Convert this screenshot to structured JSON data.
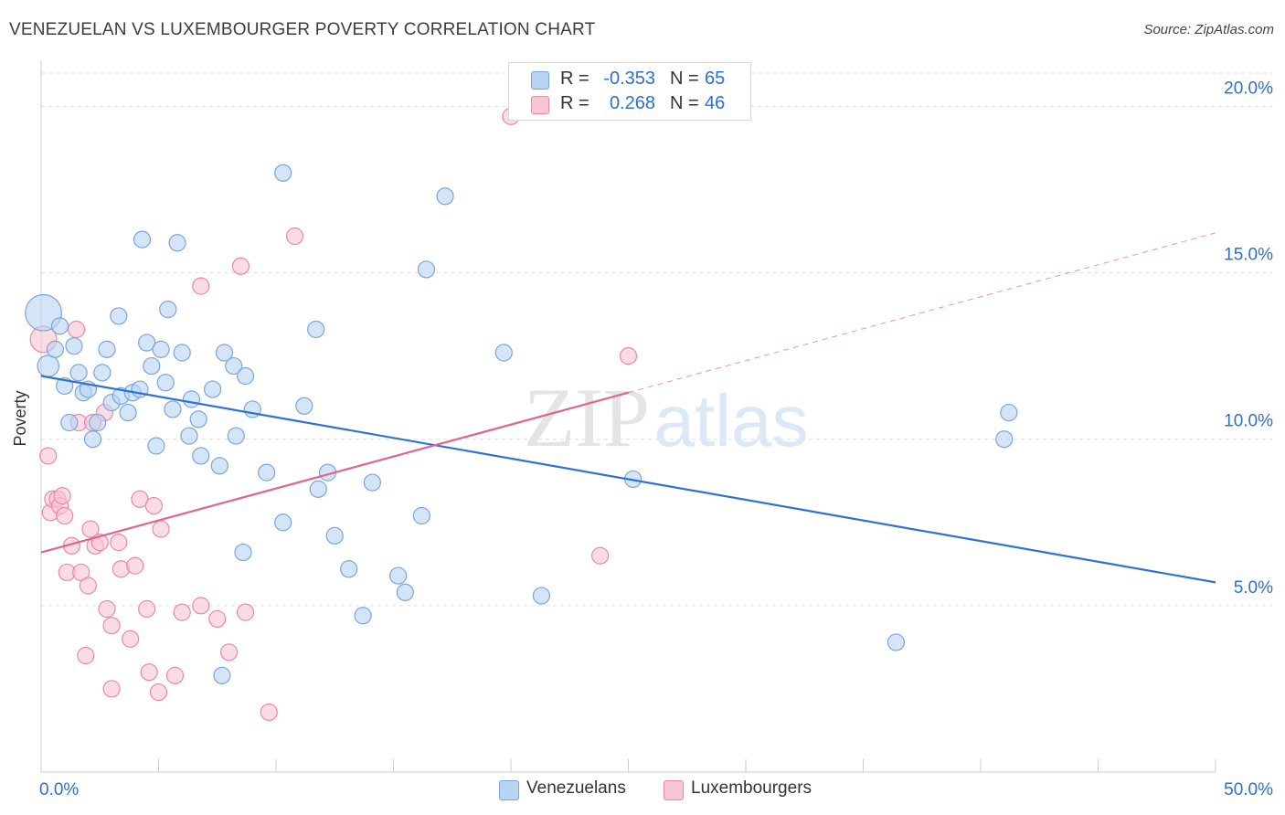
{
  "header": {
    "title": "VENEZUELAN VS LUXEMBOURGER POVERTY CORRELATION CHART",
    "source": "Source: ZipAtlas.com"
  },
  "legend_top": [
    {
      "r_label": "R =",
      "r_value": "-0.353",
      "n_label": "N =",
      "n_value": "65"
    },
    {
      "r_label": "R =",
      "r_value": "0.268",
      "n_label": "N =",
      "n_value": "46"
    }
  ],
  "legend_bottom": [
    {
      "label": "Venezuelans"
    },
    {
      "label": "Luxembourgers"
    }
  ],
  "watermark": {
    "part1": "ZIP",
    "part2": "atlas"
  },
  "chart_data": {
    "type": "scatter",
    "ylabel": "Poverty",
    "xlim": [
      0,
      50
    ],
    "ylim": [
      0,
      21
    ],
    "x_tick_labels": [
      "0.0%",
      "50.0%"
    ],
    "y_ticks": [
      5,
      10,
      15,
      20
    ],
    "y_tick_labels": [
      "5.0%",
      "10.0%",
      "15.0%",
      "20.0%"
    ],
    "grid": "horizontal dashed",
    "colors": {
      "venezuelans_fill": "#b9d3f3",
      "venezuelans_stroke": "#7ba5dc",
      "venezuelans_line": "#2e72d2",
      "luxembourgers_fill": "#f8c5d4",
      "luxembourgers_stroke": "#e98aa7",
      "luxembourgers_line": "#e0648d",
      "tick_label": "#2f6fce",
      "grid": "#dddddd"
    },
    "series": [
      {
        "name": "Venezuelans",
        "r": -0.353,
        "n": 65,
        "trend": {
          "x0": 0,
          "y0": 11.9,
          "x1": 50,
          "y1": 5.7,
          "solid_until": 50
        },
        "points": [
          {
            "x": 0.1,
            "y": 13.8,
            "s": 2.2
          },
          {
            "x": 0.3,
            "y": 12.2,
            "s": 1.3
          },
          {
            "x": 0.6,
            "y": 12.7,
            "s": 1
          },
          {
            "x": 0.8,
            "y": 13.4,
            "s": 1
          },
          {
            "x": 1.0,
            "y": 11.6,
            "s": 1
          },
          {
            "x": 1.2,
            "y": 10.5,
            "s": 1
          },
          {
            "x": 1.4,
            "y": 12.8,
            "s": 1
          },
          {
            "x": 1.6,
            "y": 12.0,
            "s": 1
          },
          {
            "x": 1.8,
            "y": 11.4,
            "s": 1
          },
          {
            "x": 2.0,
            "y": 11.5,
            "s": 1
          },
          {
            "x": 2.2,
            "y": 10.0,
            "s": 1
          },
          {
            "x": 2.4,
            "y": 10.5,
            "s": 1
          },
          {
            "x": 2.6,
            "y": 12.0,
            "s": 1
          },
          {
            "x": 2.8,
            "y": 12.7,
            "s": 1
          },
          {
            "x": 3.0,
            "y": 11.1,
            "s": 1
          },
          {
            "x": 3.3,
            "y": 13.7,
            "s": 1
          },
          {
            "x": 3.4,
            "y": 11.3,
            "s": 1
          },
          {
            "x": 3.7,
            "y": 10.8,
            "s": 1
          },
          {
            "x": 3.9,
            "y": 11.4,
            "s": 1
          },
          {
            "x": 4.2,
            "y": 11.5,
            "s": 1
          },
          {
            "x": 4.3,
            "y": 16.0,
            "s": 1
          },
          {
            "x": 4.5,
            "y": 12.9,
            "s": 1
          },
          {
            "x": 4.7,
            "y": 12.2,
            "s": 1
          },
          {
            "x": 4.9,
            "y": 9.8,
            "s": 1
          },
          {
            "x": 5.1,
            "y": 12.7,
            "s": 1
          },
          {
            "x": 5.3,
            "y": 11.7,
            "s": 1
          },
          {
            "x": 5.4,
            "y": 13.9,
            "s": 1
          },
          {
            "x": 5.6,
            "y": 10.9,
            "s": 1
          },
          {
            "x": 5.8,
            "y": 15.9,
            "s": 1
          },
          {
            "x": 6.0,
            "y": 12.6,
            "s": 1
          },
          {
            "x": 6.3,
            "y": 10.1,
            "s": 1
          },
          {
            "x": 6.4,
            "y": 11.2,
            "s": 1
          },
          {
            "x": 6.7,
            "y": 10.6,
            "s": 1
          },
          {
            "x": 6.8,
            "y": 9.5,
            "s": 1
          },
          {
            "x": 7.3,
            "y": 11.5,
            "s": 1
          },
          {
            "x": 7.6,
            "y": 9.2,
            "s": 1
          },
          {
            "x": 7.8,
            "y": 12.6,
            "s": 1
          },
          {
            "x": 8.2,
            "y": 12.2,
            "s": 1
          },
          {
            "x": 8.3,
            "y": 10.1,
            "s": 1
          },
          {
            "x": 8.7,
            "y": 11.9,
            "s": 1
          },
          {
            "x": 9.0,
            "y": 10.9,
            "s": 1
          },
          {
            "x": 8.6,
            "y": 6.6,
            "s": 1
          },
          {
            "x": 7.7,
            "y": 2.9,
            "s": 1
          },
          {
            "x": 9.6,
            "y": 9.0,
            "s": 1
          },
          {
            "x": 10.3,
            "y": 18.0,
            "s": 1
          },
          {
            "x": 10.3,
            "y": 7.5,
            "s": 1
          },
          {
            "x": 11.2,
            "y": 11.0,
            "s": 1
          },
          {
            "x": 11.7,
            "y": 13.3,
            "s": 1
          },
          {
            "x": 11.8,
            "y": 8.5,
            "s": 1
          },
          {
            "x": 12.2,
            "y": 9.0,
            "s": 1
          },
          {
            "x": 12.5,
            "y": 7.1,
            "s": 1
          },
          {
            "x": 13.1,
            "y": 6.1,
            "s": 1
          },
          {
            "x": 13.7,
            "y": 4.7,
            "s": 1
          },
          {
            "x": 14.1,
            "y": 8.7,
            "s": 1
          },
          {
            "x": 15.5,
            "y": 5.4,
            "s": 1
          },
          {
            "x": 15.2,
            "y": 5.9,
            "s": 1
          },
          {
            "x": 16.2,
            "y": 7.7,
            "s": 1
          },
          {
            "x": 16.4,
            "y": 15.1,
            "s": 1
          },
          {
            "x": 17.2,
            "y": 17.3,
            "s": 1
          },
          {
            "x": 19.7,
            "y": 12.6,
            "s": 1
          },
          {
            "x": 21.3,
            "y": 5.3,
            "s": 1
          },
          {
            "x": 25.2,
            "y": 8.8,
            "s": 1
          },
          {
            "x": 36.4,
            "y": 3.9,
            "s": 1
          },
          {
            "x": 41.0,
            "y": 10.0,
            "s": 1
          },
          {
            "x": 41.2,
            "y": 10.8,
            "s": 1
          }
        ]
      },
      {
        "name": "Luxembourgers",
        "r": 0.268,
        "n": 46,
        "trend": {
          "x0": 0,
          "y0": 6.6,
          "x1": 50,
          "y1": 16.2,
          "solid_until": 25
        },
        "points": [
          {
            "x": 0.1,
            "y": 13.0,
            "s": 1.6
          },
          {
            "x": 0.3,
            "y": 9.5,
            "s": 1
          },
          {
            "x": 0.4,
            "y": 7.8,
            "s": 1
          },
          {
            "x": 0.5,
            "y": 8.2,
            "s": 1
          },
          {
            "x": 0.7,
            "y": 8.2,
            "s": 1
          },
          {
            "x": 0.8,
            "y": 8.0,
            "s": 1
          },
          {
            "x": 0.9,
            "y": 8.3,
            "s": 1
          },
          {
            "x": 1.0,
            "y": 7.7,
            "s": 1
          },
          {
            "x": 1.1,
            "y": 6.0,
            "s": 1
          },
          {
            "x": 1.3,
            "y": 6.8,
            "s": 1
          },
          {
            "x": 1.5,
            "y": 13.3,
            "s": 1
          },
          {
            "x": 1.6,
            "y": 10.5,
            "s": 1
          },
          {
            "x": 1.7,
            "y": 6.0,
            "s": 1
          },
          {
            "x": 1.9,
            "y": 3.5,
            "s": 1
          },
          {
            "x": 2.0,
            "y": 5.6,
            "s": 1
          },
          {
            "x": 2.1,
            "y": 7.3,
            "s": 1
          },
          {
            "x": 2.2,
            "y": 10.5,
            "s": 1
          },
          {
            "x": 2.3,
            "y": 6.8,
            "s": 1
          },
          {
            "x": 2.5,
            "y": 6.9,
            "s": 1
          },
          {
            "x": 2.7,
            "y": 10.8,
            "s": 1
          },
          {
            "x": 2.8,
            "y": 4.9,
            "s": 1
          },
          {
            "x": 3.0,
            "y": 4.4,
            "s": 1
          },
          {
            "x": 3.0,
            "y": 2.5,
            "s": 1
          },
          {
            "x": 3.3,
            "y": 6.9,
            "s": 1
          },
          {
            "x": 3.4,
            "y": 6.1,
            "s": 1
          },
          {
            "x": 3.8,
            "y": 4.0,
            "s": 1
          },
          {
            "x": 4.0,
            "y": 6.2,
            "s": 1
          },
          {
            "x": 4.2,
            "y": 8.2,
            "s": 1
          },
          {
            "x": 4.5,
            "y": 4.9,
            "s": 1
          },
          {
            "x": 4.6,
            "y": 3.0,
            "s": 1
          },
          {
            "x": 4.8,
            "y": 8.0,
            "s": 1
          },
          {
            "x": 5.0,
            "y": 2.4,
            "s": 1
          },
          {
            "x": 5.1,
            "y": 7.3,
            "s": 1
          },
          {
            "x": 5.7,
            "y": 2.9,
            "s": 1
          },
          {
            "x": 6.0,
            "y": 4.8,
            "s": 1
          },
          {
            "x": 6.8,
            "y": 5.0,
            "s": 1
          },
          {
            "x": 6.8,
            "y": 14.6,
            "s": 1
          },
          {
            "x": 7.5,
            "y": 4.6,
            "s": 1
          },
          {
            "x": 8.0,
            "y": 3.6,
            "s": 1
          },
          {
            "x": 8.5,
            "y": 15.2,
            "s": 1
          },
          {
            "x": 8.7,
            "y": 4.8,
            "s": 1
          },
          {
            "x": 9.7,
            "y": 1.8,
            "s": 1
          },
          {
            "x": 10.8,
            "y": 16.1,
            "s": 1
          },
          {
            "x": 20.0,
            "y": 19.7,
            "s": 1
          },
          {
            "x": 25.0,
            "y": 12.5,
            "s": 1
          },
          {
            "x": 23.8,
            "y": 6.5,
            "s": 1
          }
        ]
      }
    ]
  }
}
